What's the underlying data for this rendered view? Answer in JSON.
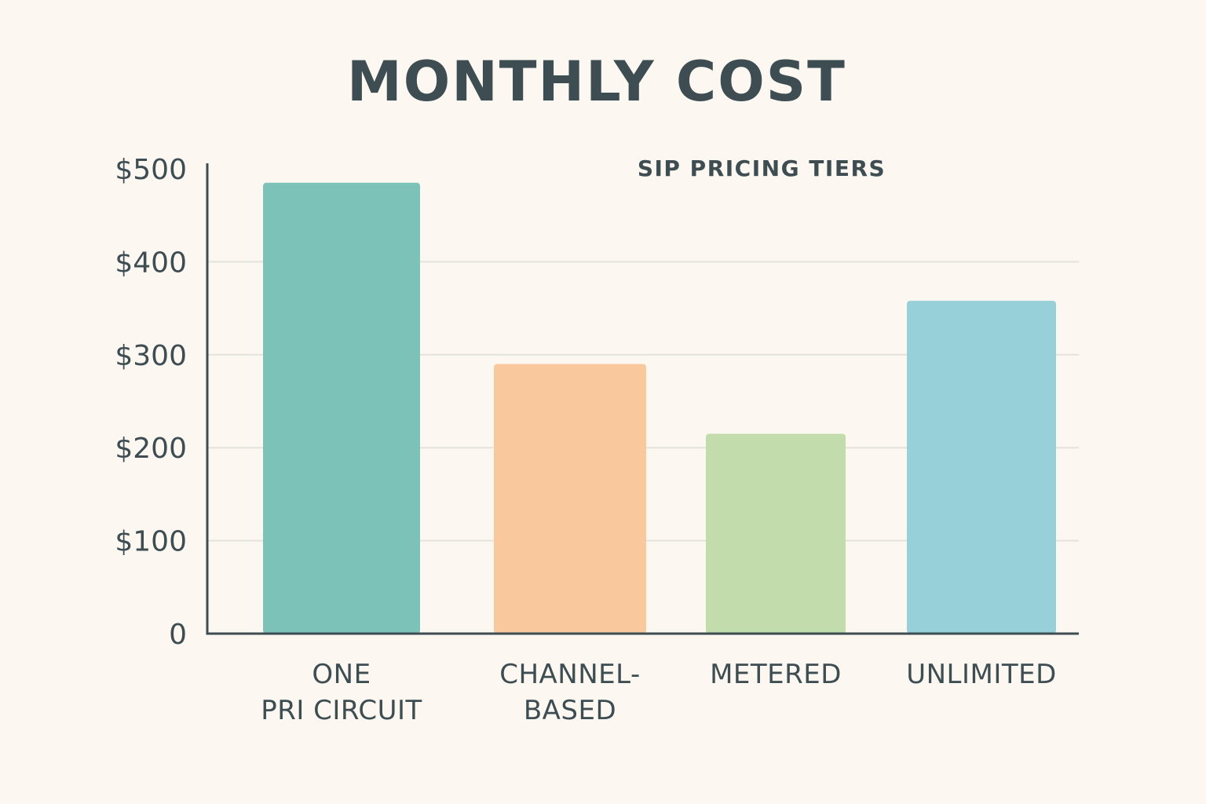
{
  "chart_data": {
    "type": "bar",
    "title": "MONTHLY COST",
    "subtitle": "SIP PRICING TIERS",
    "categories": [
      [
        "ONE",
        "PRI CIRCUIT"
      ],
      [
        "CHANNEL-",
        "BASED"
      ],
      [
        "METERED"
      ],
      [
        "UNLIMITED"
      ]
    ],
    "values": [
      485,
      290,
      215,
      358
    ],
    "colors": [
      "#7cc2b8",
      "#f9c89c",
      "#c2dcab",
      "#98d0da"
    ],
    "ylim": [
      0,
      500
    ],
    "yticks": [
      {
        "value": 0,
        "label": "0"
      },
      {
        "value": 100,
        "label": "$100"
      },
      {
        "value": 200,
        "label": "$200"
      },
      {
        "value": 300,
        "label": "$300"
      },
      {
        "value": 400,
        "label": "$400"
      },
      {
        "value": 500,
        "label": "$500"
      }
    ],
    "grid": true,
    "xlabel": "",
    "ylabel": ""
  }
}
